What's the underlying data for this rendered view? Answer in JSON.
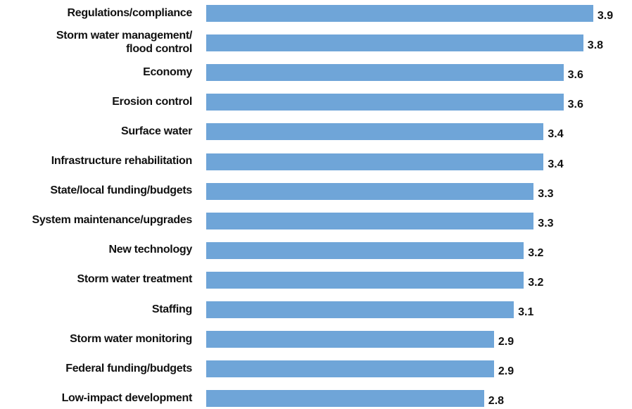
{
  "chart_data": {
    "type": "bar",
    "orientation": "horizontal",
    "color": "#6fa5d8",
    "categories": [
      "Regulations/compliance",
      "Storm water management/\nflood control",
      "Economy",
      "Erosion control",
      "Surface water",
      "Infrastructure rehabilitation",
      "State/local funding/budgets",
      "System maintenance/upgrades",
      "New technology",
      "Storm water treatment",
      "Staffing",
      "Storm water monitoring",
      "Federal funding/budgets",
      "Low-impact development"
    ],
    "values": [
      3.9,
      3.8,
      3.6,
      3.6,
      3.4,
      3.4,
      3.3,
      3.3,
      3.2,
      3.2,
      3.1,
      2.9,
      2.9,
      2.8
    ]
  }
}
